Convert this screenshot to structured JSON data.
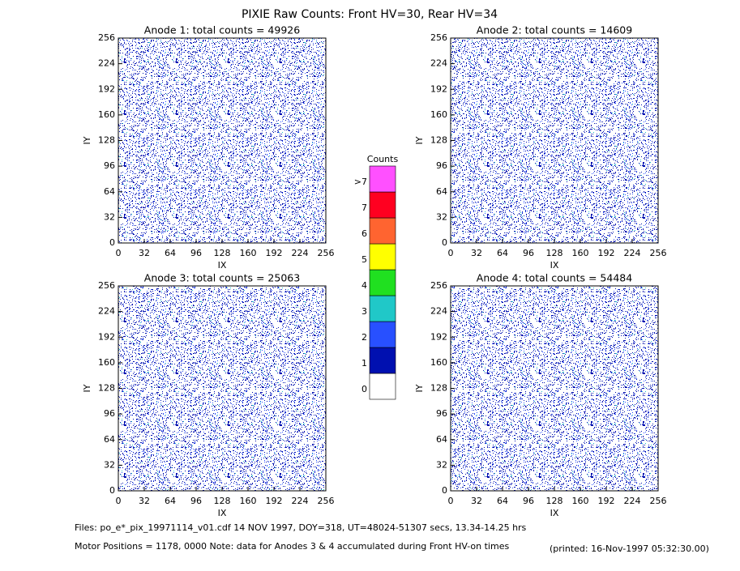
{
  "title": "PIXIE Raw Counts:  Front HV=30, Rear HV=34",
  "panels": [
    {
      "title": "Anode 1: total counts = 49926",
      "xlabel": "IX",
      "ylabel": "IY"
    },
    {
      "title": "Anode 2: total counts = 14609",
      "xlabel": "IX",
      "ylabel": "IY"
    },
    {
      "title": "Anode 3: total counts = 25063",
      "xlabel": "IX",
      "ylabel": "IY"
    },
    {
      "title": "Anode 4: total counts = 54484",
      "xlabel": "IX",
      "ylabel": "IY"
    }
  ],
  "xlim": [
    0,
    256
  ],
  "ylim": [
    0,
    256
  ],
  "xticks": [
    0,
    32,
    64,
    96,
    128,
    160,
    192,
    224,
    256
  ],
  "yticks": [
    0,
    32,
    64,
    96,
    128,
    160,
    192,
    224,
    256
  ],
  "colorbar": {
    "title": "Counts",
    "levels": [
      {
        "label": "0",
        "color": "#ffffff"
      },
      {
        "label": "1",
        "color": "#0010b0"
      },
      {
        "label": "2",
        "color": "#2850ff"
      },
      {
        "label": "3",
        "color": "#20c8c8"
      },
      {
        "label": "4",
        "color": "#20e020"
      },
      {
        "label": "5",
        "color": "#ffff00"
      },
      {
        "label": "6",
        "color": "#ff6430"
      },
      {
        "label": "7",
        "color": "#ff0020"
      },
      {
        "label": ">7",
        "color": "#ff50ff"
      }
    ]
  },
  "footer": {
    "files": "Files: po_e*_pix_19971114_v01.cdf     14 NOV 1997, DOY=318, UT=48024-51307 secs, 13.34-14.25 hrs",
    "motor": "Motor Positions = 1178, 0000    Note: data for Anodes 3 & 4 accumulated during Front HV-on times",
    "printed": "(printed: 16-Nov-1997 05:32:30.00)"
  }
}
